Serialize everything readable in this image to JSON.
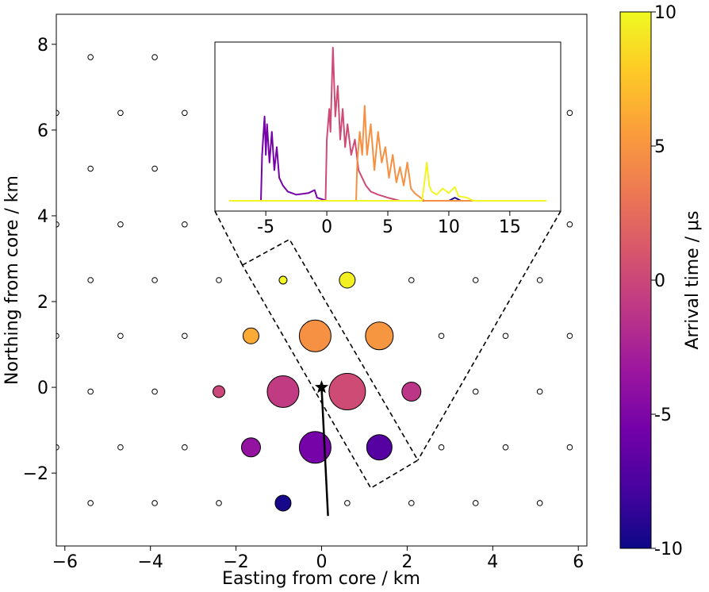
{
  "chart_data": {
    "type": "scatter",
    "xlabel": "Easting from core / km",
    "ylabel": "Northing from core / km",
    "xlim": [
      -6.2,
      6.2
    ],
    "ylim": [
      -3.7,
      8.7
    ],
    "xticks": [
      -6,
      -4,
      -2,
      0,
      2,
      4,
      6
    ],
    "xtick_labels": [
      "−6",
      "−4",
      "−2",
      "0",
      "2",
      "4",
      "6"
    ],
    "yticks": [
      -2,
      0,
      2,
      4,
      6,
      8
    ],
    "ytick_labels": [
      "−2",
      "0",
      "2",
      "4",
      "6",
      "8"
    ],
    "grid": false,
    "empty_stations": [
      [
        -5.4,
        7.7
      ],
      [
        -3.9,
        7.7
      ],
      [
        -6.2,
        6.4
      ],
      [
        -4.7,
        6.4
      ],
      [
        -3.2,
        6.4
      ],
      [
        5.8,
        6.4
      ],
      [
        -5.4,
        5.1
      ],
      [
        -3.9,
        5.1
      ],
      [
        -6.2,
        3.8
      ],
      [
        -4.7,
        3.8
      ],
      [
        -3.2,
        3.8
      ],
      [
        5.8,
        3.8
      ],
      [
        -5.4,
        2.5
      ],
      [
        -3.9,
        2.5
      ],
      [
        -2.4,
        2.5
      ],
      [
        2.1,
        2.5
      ],
      [
        3.6,
        2.5
      ],
      [
        5.1,
        2.5
      ],
      [
        -6.2,
        1.2
      ],
      [
        -4.7,
        1.2
      ],
      [
        -3.2,
        1.2
      ],
      [
        2.8,
        1.2
      ],
      [
        4.3,
        1.2
      ],
      [
        5.8,
        1.2
      ],
      [
        -5.4,
        -0.1
      ],
      [
        -3.9,
        -0.1
      ],
      [
        3.6,
        -0.1
      ],
      [
        5.1,
        -0.1
      ],
      [
        -6.2,
        -1.4
      ],
      [
        -4.7,
        -1.4
      ],
      [
        -3.2,
        -1.4
      ],
      [
        2.8,
        -1.4
      ],
      [
        4.3,
        -1.4
      ],
      [
        5.8,
        -1.4
      ],
      [
        -5.4,
        -2.7
      ],
      [
        -3.9,
        -2.7
      ],
      [
        -2.4,
        -2.7
      ],
      [
        0.6,
        -2.7
      ],
      [
        2.1,
        -2.7
      ],
      [
        3.6,
        -2.7
      ],
      [
        5.1,
        -2.7
      ]
    ],
    "hit_stations": [
      {
        "x": -0.9,
        "y": 2.5,
        "t": 9.8,
        "size": 1
      },
      {
        "x": 0.6,
        "y": 2.5,
        "t": 9.6,
        "size": 2
      },
      {
        "x": -1.65,
        "y": 1.2,
        "t": 6.2,
        "size": 2
      },
      {
        "x": -0.15,
        "y": 1.2,
        "t": 4.8,
        "size": 4
      },
      {
        "x": 1.35,
        "y": 1.2,
        "t": 5.1,
        "size": 3.5
      },
      {
        "x": -2.4,
        "y": -0.1,
        "t": 0.0,
        "size": 1.5
      },
      {
        "x": -0.9,
        "y": -0.1,
        "t": -0.8,
        "size": 4
      },
      {
        "x": 0.6,
        "y": -0.1,
        "t": 0.3,
        "size": 4.6
      },
      {
        "x": 2.1,
        "y": -0.1,
        "t": -1.2,
        "size": 2.4
      },
      {
        "x": -1.65,
        "y": -1.4,
        "t": -3.8,
        "size": 2.4
      },
      {
        "x": -0.15,
        "y": -1.4,
        "t": -5.4,
        "size": 4
      },
      {
        "x": 1.35,
        "y": -1.4,
        "t": -7.0,
        "size": 3.2
      },
      {
        "x": -0.9,
        "y": -2.7,
        "t": -9.6,
        "size": 2
      }
    ],
    "core": {
      "x": 0.0,
      "y": 0.0
    },
    "shower_axis": {
      "from": [
        0.0,
        0.0
      ],
      "to": [
        0.15,
        -3.0
      ]
    },
    "highlight_box": [
      [
        -1.85,
        2.85
      ],
      [
        -0.75,
        3.45
      ],
      [
        2.25,
        -1.7
      ],
      [
        1.15,
        -2.35
      ]
    ],
    "inset": {
      "xlim": [
        -8,
        18
      ],
      "xticks": [
        -5,
        0,
        5,
        10,
        15
      ],
      "xtick_labels": [
        "-5",
        "0",
        "5",
        "10",
        "15"
      ],
      "traces": [
        {
          "t": -9.6,
          "segments": [
            [
              -8,
              0
            ],
            [
              10,
              0
            ],
            [
              10.5,
              0.02
            ],
            [
              11,
              0
            ],
            [
              18,
              0
            ]
          ]
        },
        {
          "t": -5.4,
          "segments": [
            [
              -8,
              0
            ],
            [
              -5.4,
              0
            ],
            [
              -5.3,
              0.3
            ],
            [
              -5.1,
              0.55
            ],
            [
              -5.0,
              0.3
            ],
            [
              -4.9,
              0.5
            ],
            [
              -4.7,
              0.25
            ],
            [
              -4.5,
              0.45
            ],
            [
              -4.3,
              0.2
            ],
            [
              -4.1,
              0.35
            ],
            [
              -3.9,
              0.15
            ],
            [
              -3.6,
              0.1
            ],
            [
              -3.2,
              0.06
            ],
            [
              -2.5,
              0.04
            ],
            [
              -1.5,
              0.05
            ],
            [
              -1.0,
              0.07
            ],
            [
              -0.8,
              0.02
            ],
            [
              0,
              0
            ],
            [
              18,
              0
            ]
          ]
        },
        {
          "t": 0.3,
          "segments": [
            [
              -8,
              0
            ],
            [
              -0.1,
              0
            ],
            [
              0.0,
              0.4
            ],
            [
              0.2,
              0.6
            ],
            [
              0.3,
              0.45
            ],
            [
              0.5,
              1.0
            ],
            [
              0.7,
              0.55
            ],
            [
              0.9,
              0.75
            ],
            [
              1.1,
              0.4
            ],
            [
              1.3,
              0.6
            ],
            [
              1.5,
              0.35
            ],
            [
              1.7,
              0.5
            ],
            [
              2.0,
              0.3
            ],
            [
              2.3,
              0.4
            ],
            [
              2.6,
              0.2
            ],
            [
              2.9,
              0.15
            ],
            [
              3.2,
              0.1
            ],
            [
              3.6,
              0.06
            ],
            [
              4.2,
              0.04
            ],
            [
              5.0,
              0.02
            ],
            [
              6.0,
              0
            ],
            [
              18,
              0
            ]
          ]
        },
        {
          "t": 4.8,
          "segments": [
            [
              -8,
              0
            ],
            [
              2.4,
              0
            ],
            [
              2.5,
              0.25
            ],
            [
              2.7,
              0.45
            ],
            [
              2.9,
              0.3
            ],
            [
              3.1,
              0.62
            ],
            [
              3.3,
              0.3
            ],
            [
              3.6,
              0.5
            ],
            [
              3.9,
              0.2
            ],
            [
              4.2,
              0.45
            ],
            [
              4.5,
              0.25
            ],
            [
              4.8,
              0.35
            ],
            [
              5.1,
              0.15
            ],
            [
              5.4,
              0.3
            ],
            [
              5.7,
              0.12
            ],
            [
              6.0,
              0.22
            ],
            [
              6.3,
              0.1
            ],
            [
              6.6,
              0.25
            ],
            [
              6.9,
              0.08
            ],
            [
              7.2,
              0.05
            ],
            [
              8.0,
              0
            ],
            [
              18,
              0
            ]
          ]
        },
        {
          "t": 9.8,
          "segments": [
            [
              -8,
              0
            ],
            [
              7.8,
              0
            ],
            [
              8.0,
              0.12
            ],
            [
              8.2,
              0.25
            ],
            [
              8.4,
              0.1
            ],
            [
              8.6,
              0.06
            ],
            [
              9.0,
              0.04
            ],
            [
              9.5,
              0.08
            ],
            [
              10.0,
              0.05
            ],
            [
              10.5,
              0.09
            ],
            [
              10.8,
              0.03
            ],
            [
              11.5,
              0.02
            ],
            [
              12.0,
              0
            ],
            [
              18,
              0
            ]
          ]
        }
      ]
    },
    "colorbar": {
      "label": "Arrival time / μs",
      "range": [
        -10,
        10
      ],
      "ticks": [
        10,
        5,
        0,
        -5,
        -10
      ],
      "tick_labels": [
        "10",
        "5",
        "0",
        "-5",
        "-10"
      ],
      "colormap": "plasma",
      "stops": [
        "#0d0887",
        "#47039f",
        "#7301a8",
        "#9c179e",
        "#bd3786",
        "#d8576b",
        "#ed7953",
        "#fa9e3b",
        "#fdc926",
        "#f0f921"
      ]
    }
  }
}
